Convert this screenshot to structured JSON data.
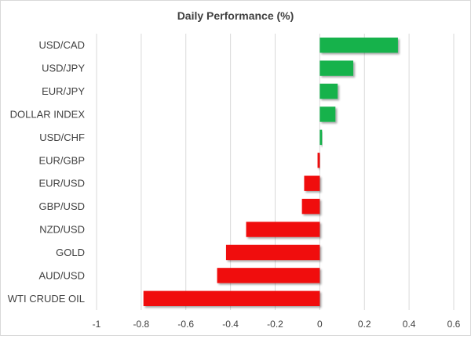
{
  "chart_data": {
    "type": "bar",
    "orientation": "horizontal",
    "title": "Daily Performance (%)",
    "xlabel": "",
    "ylabel": "",
    "xlim": [
      -1,
      0.6
    ],
    "ticks": [
      -1,
      -0.8,
      -0.6,
      -0.4,
      -0.2,
      0,
      0.2,
      0.4,
      0.6
    ],
    "tick_labels": [
      "-1",
      "-0.8",
      "-0.6",
      "-0.4",
      "-0.2",
      "0",
      "0.2",
      "0.4",
      "0.6"
    ],
    "grid": true,
    "legend": "none",
    "categories": [
      "USD/CAD",
      "USD/JPY",
      "EUR/JPY",
      "DOLLAR INDEX",
      "USD/CHF",
      "EUR/GBP",
      "EUR/USD",
      "GBP/USD",
      "NZD/USD",
      "GOLD",
      "AUD/USD",
      "WTI CRUDE OIL"
    ],
    "values": [
      0.35,
      0.15,
      0.08,
      0.07,
      0.01,
      -0.01,
      -0.07,
      -0.08,
      -0.33,
      -0.42,
      -0.46,
      -0.79
    ],
    "colors": {
      "positive": "#13b24b",
      "negative": "#f01010",
      "shadow": "#b3b3b3",
      "grid": "#d9d9d9",
      "text": "#404040"
    }
  }
}
